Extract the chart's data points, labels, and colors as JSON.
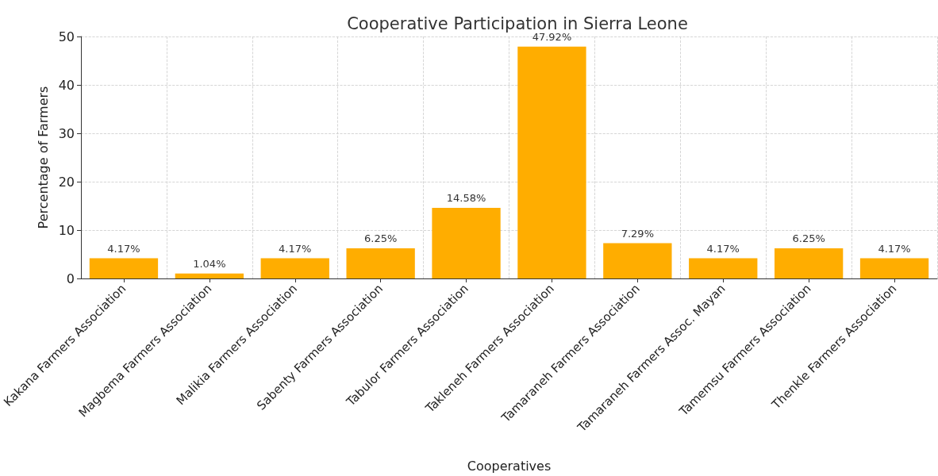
{
  "chart_data": {
    "type": "bar",
    "title": "Cooperative Participation in Sierra Leone",
    "xlabel": "Cooperatives",
    "ylabel": "Percentage of Farmers",
    "categories": [
      "Kakana Farmers Association",
      "Magbema Farmers Association",
      "Malikia Farmers Association",
      "Sabenty Farmers Association",
      "Tabulor Farmers Association",
      "Takleneh Farmers Association",
      "Tamaraneh Farmers Association",
      "Tamaraneh Farmers Assoc. Mayan",
      "Tamemsu Farmers Association",
      "Thenkle Farmers Association"
    ],
    "values": [
      4.17,
      1.04,
      4.17,
      6.25,
      14.58,
      47.92,
      7.29,
      4.17,
      6.25,
      4.17
    ],
    "value_labels": [
      "4.17%",
      "1.04%",
      "4.17%",
      "6.25%",
      "14.58%",
      "47.92%",
      "7.29%",
      "4.17%",
      "6.25%",
      "4.17%"
    ],
    "color": "#ffad00",
    "ylim": [
      0,
      50
    ],
    "yticks": [
      0,
      10,
      20,
      30,
      40,
      50
    ],
    "grid": true
  }
}
